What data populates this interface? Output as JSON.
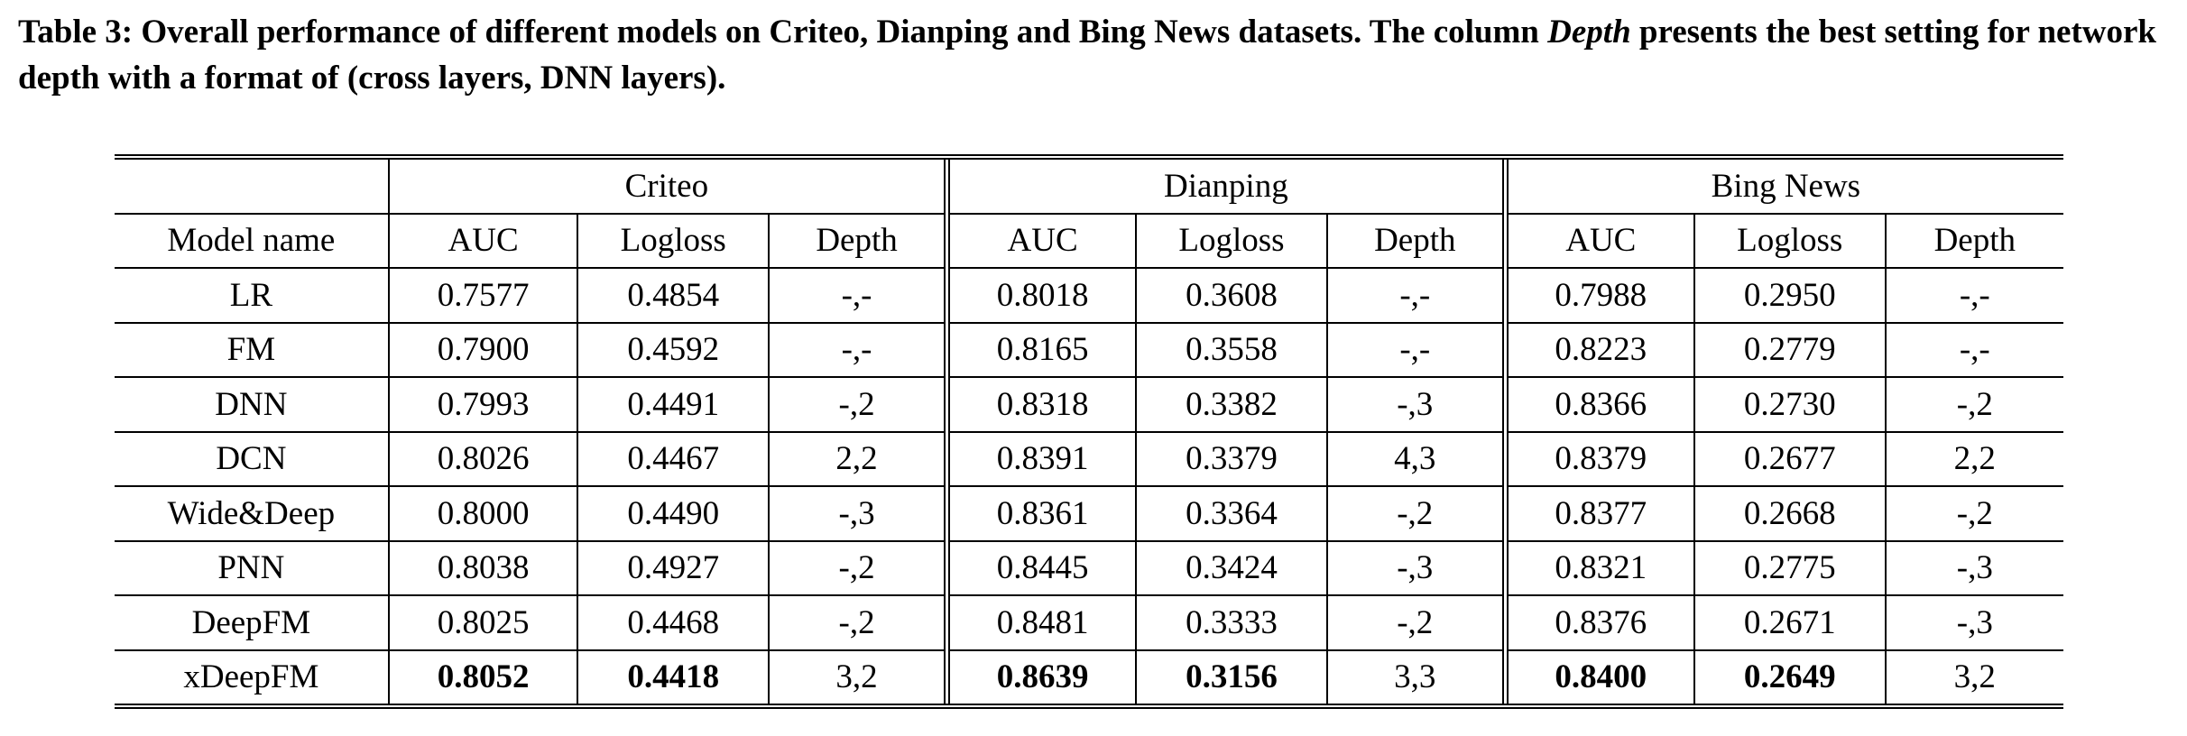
{
  "caption": {
    "part1": "Table 3: Overall performance of different models on Criteo, Dianping and Bing News datasets. The column ",
    "italic": "Depth",
    "part2": " presents the best setting for network depth with a format of (cross layers, DNN layers)."
  },
  "table": {
    "groups": [
      "Criteo",
      "Dianping",
      "Bing News"
    ],
    "header": [
      "Model name",
      "AUC",
      "Logloss",
      "Depth",
      "AUC",
      "Logloss",
      "Depth",
      "AUC",
      "Logloss",
      "Depth"
    ],
    "rows": [
      [
        "LR",
        "0.7577",
        "0.4854",
        "-,-",
        "0.8018",
        "0.3608",
        "-,-",
        "0.7988",
        "0.2950",
        "-,-"
      ],
      [
        "FM",
        "0.7900",
        "0.4592",
        "-,-",
        "0.8165",
        "0.3558",
        "-,-",
        "0.8223",
        "0.2779",
        "-,-"
      ],
      [
        "DNN",
        "0.7993",
        "0.4491",
        "-,2",
        "0.8318",
        "0.3382",
        "-,3",
        "0.8366",
        "0.2730",
        "-,2"
      ],
      [
        "DCN",
        "0.8026",
        "0.4467",
        "2,2",
        "0.8391",
        "0.3379",
        "4,3",
        "0.8379",
        "0.2677",
        "2,2"
      ],
      [
        "Wide&Deep",
        "0.8000",
        "0.4490",
        "-,3",
        "0.8361",
        "0.3364",
        "-,2",
        "0.8377",
        "0.2668",
        "-,2"
      ],
      [
        "PNN",
        "0.8038",
        "0.4927",
        "-,2",
        "0.8445",
        "0.3424",
        "-,3",
        "0.8321",
        "0.2775",
        "-,3"
      ],
      [
        "DeepFM",
        "0.8025",
        "0.4468",
        "-,2",
        "0.8481",
        "0.3333",
        "-,2",
        "0.8376",
        "0.2671",
        "-,3"
      ],
      [
        "xDeepFM",
        "0.8052",
        "0.4418",
        "3,2",
        "0.8639",
        "0.3156",
        "3,3",
        "0.8400",
        "0.2649",
        "3,2"
      ]
    ]
  }
}
